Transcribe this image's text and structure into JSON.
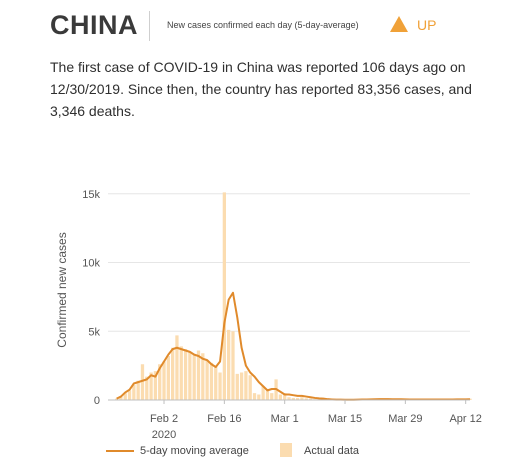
{
  "header": {
    "country": "CHINA",
    "metric": "New cases confirmed each day (5-day-average)",
    "trend_icon": "triangle-up-icon",
    "trend_label": "UP",
    "trend_color": "#f0a138"
  },
  "summary": "The first case of COVID-19 in China was reported 106 days ago on 12/30/2019. Since then, the country has reported 83,356 cases, and 3,346 deaths.",
  "chart_data": {
    "type": "bar",
    "ylabel": "Confirmed new cases",
    "ylim": [
      0,
      16000
    ],
    "yticks": [
      0,
      5000,
      10000,
      15000
    ],
    "ytick_labels": [
      "0",
      "5k",
      "10k",
      "15k"
    ],
    "xlim": [
      "2020-01-20",
      "2020-04-13"
    ],
    "xticks": [
      "2020-02-02",
      "2020-02-16",
      "2020-03-01",
      "2020-03-15",
      "2020-03-29",
      "2020-04-12"
    ],
    "xtick_labels": [
      "Feb 2",
      "Feb 16",
      "Mar 1",
      "Mar 15",
      "Mar 29",
      "Apr 12"
    ],
    "x_extra_label": "2020",
    "grid": true,
    "legend_position": "bottom",
    "bar_color": "#fbdcb0",
    "line_color": "#e08a2b",
    "series": [
      {
        "name": "Actual data",
        "type": "bar",
        "x": [
          "2020-01-22",
          "2020-01-23",
          "2020-01-24",
          "2020-01-25",
          "2020-01-26",
          "2020-01-27",
          "2020-01-28",
          "2020-01-29",
          "2020-01-30",
          "2020-01-31",
          "2020-02-01",
          "2020-02-02",
          "2020-02-03",
          "2020-02-04",
          "2020-02-05",
          "2020-02-06",
          "2020-02-07",
          "2020-02-08",
          "2020-02-09",
          "2020-02-10",
          "2020-02-11",
          "2020-02-12",
          "2020-02-13",
          "2020-02-14",
          "2020-02-15",
          "2020-02-16",
          "2020-02-17",
          "2020-02-18",
          "2020-02-19",
          "2020-02-20",
          "2020-02-21",
          "2020-02-22",
          "2020-02-23",
          "2020-02-24",
          "2020-02-25",
          "2020-02-26",
          "2020-02-27",
          "2020-02-28",
          "2020-02-29",
          "2020-03-01",
          "2020-03-02",
          "2020-03-03",
          "2020-03-04",
          "2020-03-05",
          "2020-03-06",
          "2020-03-07",
          "2020-03-08",
          "2020-03-09",
          "2020-03-10",
          "2020-03-11",
          "2020-03-12",
          "2020-03-13",
          "2020-03-14",
          "2020-03-15",
          "2020-03-16",
          "2020-03-17",
          "2020-03-18",
          "2020-03-19",
          "2020-03-20",
          "2020-03-21",
          "2020-03-22",
          "2020-03-23",
          "2020-03-24",
          "2020-03-25",
          "2020-03-26",
          "2020-03-27",
          "2020-03-28",
          "2020-03-29",
          "2020-03-30",
          "2020-03-31",
          "2020-04-01",
          "2020-04-02",
          "2020-04-03",
          "2020-04-04",
          "2020-04-05",
          "2020-04-06",
          "2020-04-07",
          "2020-04-08",
          "2020-04-09",
          "2020-04-10",
          "2020-04-11",
          "2020-04-12",
          "2020-04-13"
        ],
        "values": [
          100,
          250,
          500,
          700,
          1100,
          1400,
          2600,
          1700,
          2000,
          2100,
          2600,
          2800,
          3200,
          3800,
          4700,
          3900,
          3700,
          3500,
          3300,
          3600,
          3400,
          2900,
          2700,
          2500,
          2000,
          15100,
          5100,
          5000,
          1900,
          2000,
          2100,
          1800,
          500,
          400,
          1000,
          800,
          500,
          1500,
          400,
          500,
          200,
          150,
          140,
          200,
          120,
          100,
          60,
          50,
          30,
          20,
          20,
          15,
          20,
          20,
          20,
          15,
          30,
          40,
          40,
          50,
          60,
          70,
          80,
          60,
          50,
          60,
          50,
          40,
          30,
          40,
          35,
          30,
          40,
          30,
          30,
          30,
          30,
          60,
          40,
          40,
          45,
          45,
          100
        ]
      },
      {
        "name": "5-day moving average",
        "type": "line",
        "x": [
          "2020-01-22",
          "2020-01-23",
          "2020-01-24",
          "2020-01-25",
          "2020-01-26",
          "2020-01-27",
          "2020-01-28",
          "2020-01-29",
          "2020-01-30",
          "2020-01-31",
          "2020-02-01",
          "2020-02-02",
          "2020-02-03",
          "2020-02-04",
          "2020-02-05",
          "2020-02-06",
          "2020-02-07",
          "2020-02-08",
          "2020-02-09",
          "2020-02-10",
          "2020-02-11",
          "2020-02-12",
          "2020-02-13",
          "2020-02-14",
          "2020-02-15",
          "2020-02-16",
          "2020-02-17",
          "2020-02-18",
          "2020-02-19",
          "2020-02-20",
          "2020-02-21",
          "2020-02-22",
          "2020-02-23",
          "2020-02-24",
          "2020-02-25",
          "2020-02-26",
          "2020-02-27",
          "2020-02-28",
          "2020-02-29",
          "2020-03-01",
          "2020-03-02",
          "2020-03-03",
          "2020-03-04",
          "2020-03-05",
          "2020-03-06",
          "2020-03-07",
          "2020-03-08",
          "2020-03-09",
          "2020-03-10",
          "2020-03-11",
          "2020-03-12",
          "2020-03-13",
          "2020-03-14",
          "2020-03-15",
          "2020-03-16",
          "2020-03-17",
          "2020-03-18",
          "2020-03-19",
          "2020-03-20",
          "2020-03-21",
          "2020-03-22",
          "2020-03-23",
          "2020-03-24",
          "2020-03-25",
          "2020-03-26",
          "2020-03-27",
          "2020-03-28",
          "2020-03-29",
          "2020-03-30",
          "2020-03-31",
          "2020-04-01",
          "2020-04-02",
          "2020-04-03",
          "2020-04-04",
          "2020-04-05",
          "2020-04-06",
          "2020-04-07",
          "2020-04-08",
          "2020-04-09",
          "2020-04-10",
          "2020-04-11",
          "2020-04-12",
          "2020-04-13"
        ],
        "values": [
          100,
          250,
          550,
          750,
          1200,
          1300,
          1400,
          1500,
          1800,
          1700,
          2300,
          2800,
          3300,
          3700,
          3800,
          3700,
          3600,
          3500,
          3300,
          3200,
          3000,
          2900,
          2600,
          2400,
          2800,
          5600,
          7300,
          7800,
          6000,
          3800,
          2500,
          2000,
          1700,
          1300,
          1000,
          700,
          800,
          800,
          600,
          400,
          400,
          350,
          300,
          300,
          250,
          200,
          150,
          120,
          100,
          60,
          40,
          25,
          25,
          20,
          20,
          20,
          25,
          35,
          40,
          45,
          55,
          60,
          65,
          60,
          55,
          55,
          50,
          45,
          40,
          40,
          38,
          35,
          35,
          35,
          32,
          32,
          32,
          38,
          40,
          42,
          44,
          45,
          55
        ]
      }
    ]
  }
}
